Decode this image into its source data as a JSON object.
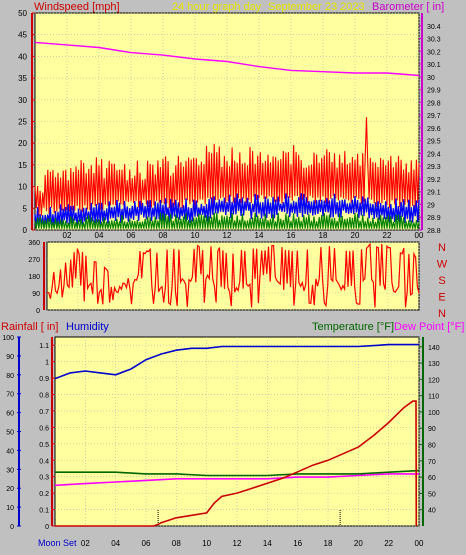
{
  "chart_data": [
    {
      "type": "line",
      "left_axis_label": "Windspeed [mph]",
      "subtitle": "24 hour graph day",
      "date": "September 23 2023",
      "right_axis_label": "Barometer [ in]",
      "x_ticks": [
        "02",
        "04",
        "06",
        "08",
        "10",
        "12",
        "14",
        "16",
        "18",
        "20",
        "22",
        "00"
      ],
      "wind_ylim": [
        0,
        50
      ],
      "wind_ticks": [
        "0",
        "5",
        "10",
        "15",
        "20",
        "25",
        "30",
        "35",
        "40",
        "45",
        "50"
      ],
      "baro_ylim": [
        28.8,
        30.5
      ],
      "baro_ticks": [
        "28.8",
        "28.9",
        "29",
        "29.1",
        "29.2",
        "29.3",
        "29.4",
        "29.5",
        "29.6",
        "29.7",
        "29.8",
        "29.9",
        "30",
        "30.1",
        "30.2",
        "30.3",
        "30.4"
      ],
      "series": [
        {
          "key": "barometer",
          "x": [
            0,
            2,
            4,
            6,
            8,
            10,
            12,
            14,
            16,
            18,
            20,
            22,
            24
          ],
          "values": [
            30.27,
            30.25,
            30.23,
            30.19,
            30.17,
            30.14,
            30.12,
            30.08,
            30.05,
            30.04,
            30.03,
            30.03,
            30.01
          ]
        },
        {
          "key": "gust",
          "x": [
            0,
            1,
            2,
            3,
            4,
            5,
            6,
            7,
            8,
            9,
            10,
            11,
            12,
            13,
            14,
            15,
            16,
            17,
            18,
            19,
            20,
            21,
            22,
            23,
            24
          ],
          "values": [
            8,
            11,
            12,
            13,
            13,
            12,
            12,
            12,
            13,
            14,
            14,
            16,
            15,
            16,
            15,
            15,
            16,
            15,
            16,
            15,
            16,
            15,
            14,
            13,
            14
          ],
          "peak": {
            "x": 20.7,
            "value": 26
          }
        },
        {
          "key": "average_wind",
          "x": [
            0,
            2,
            4,
            6,
            8,
            10,
            12,
            14,
            16,
            18,
            20,
            22,
            24
          ],
          "values": [
            3,
            4,
            4,
            5,
            5,
            5,
            6,
            6,
            6,
            6,
            6,
            5,
            5
          ]
        },
        {
          "key": "wind_lull",
          "x": [
            0,
            4,
            8,
            12,
            16,
            20,
            24
          ],
          "values": [
            1,
            1.5,
            2,
            2,
            2,
            2,
            1.5
          ]
        }
      ],
      "colors": {
        "gust": "#ff0000",
        "average_wind": "#0000ff",
        "wind_lull": "#008000",
        "barometer": "#ff00ff",
        "left_axis_label": "#cc0000",
        "subtitle": "#e6e600",
        "right_axis_label": "#cc00cc"
      }
    },
    {
      "type": "line",
      "ylim": [
        0,
        360
      ],
      "y_ticks": [
        "0",
        "90",
        "180",
        "270",
        "360"
      ],
      "right_labels": [
        "N",
        "W",
        "S",
        "E",
        "N"
      ],
      "series": [
        {
          "key": "wind_direction",
          "x": [
            0,
            1,
            2,
            3,
            4,
            5,
            6,
            7,
            8,
            9,
            10,
            11,
            12,
            13,
            14,
            15,
            16,
            17,
            18,
            19,
            20,
            21,
            22,
            23,
            24
          ],
          "values": [
            100,
            120,
            150,
            110,
            90,
            130,
            170,
            120,
            100,
            160,
            180,
            140,
            120,
            150,
            170,
            140,
            120,
            130,
            150,
            120,
            140,
            150,
            130,
            110,
            100
          ],
          "min_values": [
            40,
            40,
            40,
            30,
            30,
            20,
            20,
            20,
            10,
            10,
            10,
            10,
            10,
            10,
            10,
            10,
            10,
            10,
            10,
            10,
            10,
            10,
            10,
            10,
            10
          ],
          "max_values": [
            200,
            260,
            330,
            260,
            240,
            300,
            340,
            320,
            330,
            350,
            350,
            340,
            330,
            350,
            350,
            340,
            350,
            350,
            350,
            340,
            350,
            350,
            350,
            330,
            300
          ]
        }
      ],
      "colors": {
        "wind_direction": "#ff0000",
        "compass_labels": "#cc0000"
      }
    },
    {
      "type": "line",
      "rainfall_label": "Rainfall [ in]",
      "humidity_label": "Humidity",
      "temperature_label": "Temperature [°F]",
      "dewpoint_label": "Dew Point [°F]",
      "moon_label": "Moon Set",
      "x_ticks": [
        "02",
        "04",
        "06",
        "08",
        "10",
        "12",
        "14",
        "16",
        "18",
        "20",
        "22",
        "00"
      ],
      "humidity_ylim": [
        0,
        100
      ],
      "humidity_ticks": [
        "0",
        "10",
        "20",
        "30",
        "40",
        "50",
        "60",
        "70",
        "80",
        "90",
        "100"
      ],
      "rain_ylim": [
        0,
        1.15
      ],
      "rain_ticks": [
        "0",
        "0.1",
        "0.2",
        "0.3",
        "0.4",
        "0.5",
        "0.6",
        "0.7",
        "0.8",
        "0.9",
        "1",
        "1.1"
      ],
      "temp_ylim": [
        30,
        146
      ],
      "temp_ticks": [
        "40",
        "50",
        "60",
        "70",
        "80",
        "90",
        "100",
        "110",
        "120",
        "130",
        "140"
      ],
      "vertical_markers_x": [
        6.8,
        18.8
      ],
      "series": [
        {
          "key": "humidity",
          "x": [
            0,
            1,
            2,
            3,
            4,
            5,
            6,
            7,
            8,
            9,
            10,
            11,
            12,
            14,
            16,
            18,
            20,
            22,
            23,
            24
          ],
          "values": [
            78,
            81,
            82,
            81,
            80,
            83,
            88,
            91,
            93,
            94,
            94,
            95,
            95,
            95,
            95,
            95,
            95,
            96,
            96,
            96
          ]
        },
        {
          "key": "rainfall",
          "x": [
            0,
            6.5,
            6.8,
            7,
            8,
            10,
            10.5,
            11,
            12,
            13,
            14,
            15,
            16,
            17,
            18,
            19,
            20,
            21,
            22,
            23,
            23.6,
            23.8,
            23.82
          ],
          "values": [
            0,
            0,
            0.01,
            0.02,
            0.05,
            0.08,
            0.14,
            0.18,
            0.2,
            0.23,
            0.26,
            0.29,
            0.33,
            0.37,
            0.4,
            0.44,
            0.48,
            0.55,
            0.63,
            0.72,
            0.76,
            0.76,
            0
          ]
        },
        {
          "key": "temperature",
          "x": [
            0,
            2,
            4,
            6,
            8,
            10,
            12,
            14,
            16,
            18,
            20,
            22,
            24
          ],
          "values": [
            63,
            63,
            63,
            62,
            62,
            61,
            61,
            61,
            62,
            62,
            62,
            63,
            64
          ]
        },
        {
          "key": "dew_point",
          "x": [
            0,
            2,
            4,
            6,
            8,
            10,
            12,
            14,
            16,
            18,
            20,
            22,
            24
          ],
          "values": [
            55,
            56,
            57,
            58,
            59,
            59,
            59,
            59,
            60,
            60,
            61,
            62,
            62
          ]
        }
      ],
      "colors": {
        "humidity": "#0000cc",
        "rainfall": "#cc0000",
        "temperature": "#006600",
        "dew_point": "#ff00ff",
        "rainfall_label": "#cc0000",
        "humidity_label": "#0000cc",
        "temperature_label": "#006600",
        "dewpoint_label": "#ff00ff"
      }
    }
  ]
}
